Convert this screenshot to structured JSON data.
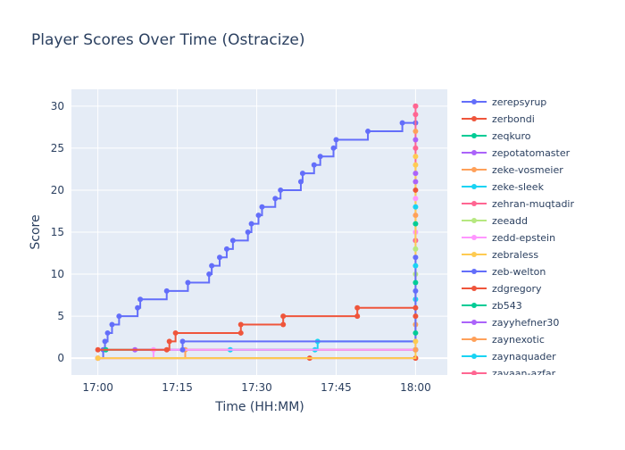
{
  "chart_data": {
    "type": "line",
    "line_shape": "step",
    "title": "Player Scores Over Time (Ostracize)",
    "xlabel": "Time (HH:MM)",
    "ylabel": "Score",
    "x_axis": {
      "range": [
        "16:55",
        "18:06"
      ],
      "tick_labels": [
        "17:00",
        "17:15",
        "17:30",
        "17:45",
        "18:00"
      ]
    },
    "y_axis": {
      "range": [
        -2,
        32
      ],
      "ticks": [
        0,
        5,
        10,
        15,
        20,
        25,
        30
      ]
    },
    "grid": true,
    "legend_position": "right",
    "series": [
      {
        "name": "zerepsyrup",
        "color": "#636efa",
        "points": [
          [
            "17:00",
            0
          ],
          [
            "17:01",
            1
          ],
          [
            "17:01:20",
            2
          ],
          [
            "17:01:50",
            3
          ],
          [
            "17:02:40",
            4
          ],
          [
            "17:04",
            5
          ],
          [
            "17:07:30",
            6
          ],
          [
            "17:08",
            7
          ],
          [
            "17:13",
            8
          ],
          [
            "17:17",
            9
          ],
          [
            "17:21",
            10
          ],
          [
            "17:21:30",
            11
          ],
          [
            "17:23",
            12
          ],
          [
            "17:24:20",
            13
          ],
          [
            "17:25:30",
            14
          ],
          [
            "17:28:20",
            15
          ],
          [
            "17:29",
            16
          ],
          [
            "17:30:20",
            17
          ],
          [
            "17:31",
            18
          ],
          [
            "17:33:30",
            19
          ],
          [
            "17:34:30",
            20
          ],
          [
            "17:38:20",
            21
          ],
          [
            "17:38:40",
            22
          ],
          [
            "17:40:50",
            23
          ],
          [
            "17:42",
            24
          ],
          [
            "17:44:30",
            25
          ],
          [
            "17:45",
            26
          ],
          [
            "17:51",
            27
          ],
          [
            "17:57:30",
            28
          ],
          [
            "18:00",
            28
          ]
        ]
      },
      {
        "name": "zerbondi",
        "color": "#ef553b",
        "points": [
          [
            "17:00",
            0
          ],
          [
            "17:40",
            0
          ],
          [
            "18:00",
            0
          ]
        ]
      },
      {
        "name": "zeqkuro",
        "color": "#00cc96",
        "points": [
          [
            "17:01:30",
            1
          ],
          [
            "18:00",
            1
          ]
        ]
      },
      {
        "name": "zepotatomaster",
        "color": "#ab63fa",
        "points": [
          [
            "17:07",
            1
          ],
          [
            "18:00",
            1
          ]
        ]
      },
      {
        "name": "zeke-vosmeier",
        "color": "#ffa15a",
        "points": [
          [
            "17:00",
            0
          ],
          [
            "17:16:30",
            1
          ],
          [
            "18:00",
            4
          ]
        ]
      },
      {
        "name": "zeke-sleek",
        "color": "#19d3f3",
        "points": [
          [
            "17:25",
            1
          ],
          [
            "17:41",
            1
          ],
          [
            "17:41:30",
            2
          ],
          [
            "18:00",
            7
          ]
        ]
      },
      {
        "name": "zehran-muqtadir",
        "color": "#ff6692",
        "points": [
          [
            "18:00",
            14
          ],
          [
            "18:00",
            30
          ]
        ]
      },
      {
        "name": "zeeadd",
        "color": "#b6e880",
        "points": [
          [
            "18:00",
            10
          ]
        ]
      },
      {
        "name": "zedd-epstein",
        "color": "#ff97ff",
        "points": [
          [
            "17:00",
            0
          ],
          [
            "17:10:30",
            1
          ],
          [
            "18:00",
            15
          ]
        ]
      },
      {
        "name": "zebraless",
        "color": "#fecb52",
        "points": [
          [
            "17:00",
            0
          ],
          [
            "18:00",
            23
          ]
        ]
      },
      {
        "name": "zeb-welton",
        "color": "#636efa",
        "points": [
          [
            "17:16",
            1
          ],
          [
            "17:16",
            2
          ],
          [
            "18:00",
            12
          ]
        ]
      },
      {
        "name": "zdgregory",
        "color": "#ef553b",
        "points": [
          [
            "17:00",
            1
          ],
          [
            "17:13",
            1
          ],
          [
            "17:13:30",
            2
          ],
          [
            "17:14:40",
            3
          ],
          [
            "17:27",
            3
          ],
          [
            "17:27",
            4
          ],
          [
            "17:35",
            4
          ],
          [
            "17:35",
            5
          ],
          [
            "17:49",
            5
          ],
          [
            "17:49",
            6
          ],
          [
            "18:00",
            6
          ]
        ]
      },
      {
        "name": "zb543",
        "color": "#00cc96",
        "points": [
          [
            "18:00",
            3
          ]
        ]
      },
      {
        "name": "zayyhefner30",
        "color": "#ab63fa",
        "points": [
          [
            "18:00",
            22
          ]
        ]
      },
      {
        "name": "zaynexotic",
        "color": "#ffa15a",
        "points": [
          [
            "18:00",
            27
          ]
        ]
      },
      {
        "name": "zaynaquader",
        "color": "#19d3f3",
        "points": [
          [
            "18:00",
            18
          ]
        ]
      },
      {
        "name": "zayaan-azfar",
        "color": "#ff6692",
        "points": [
          [
            "18:00",
            29
          ]
        ]
      }
    ],
    "extra_markers_at_18_00": [
      {
        "y": 1,
        "color": "#ffa15a"
      },
      {
        "y": 2,
        "color": "#fecb52"
      },
      {
        "y": 5,
        "color": "#ef553b"
      },
      {
        "y": 8,
        "color": "#636efa"
      },
      {
        "y": 9,
        "color": "#00cc96"
      },
      {
        "y": 11,
        "color": "#19d3f3"
      },
      {
        "y": 13,
        "color": "#b6e880"
      },
      {
        "y": 16,
        "color": "#00cc96"
      },
      {
        "y": 17,
        "color": "#ffa15a"
      },
      {
        "y": 19,
        "color": "#ff97ff"
      },
      {
        "y": 20,
        "color": "#ef553b"
      },
      {
        "y": 21,
        "color": "#ab63fa"
      },
      {
        "y": 24,
        "color": "#fecb52"
      },
      {
        "y": 25,
        "color": "#ff6692"
      },
      {
        "y": 26,
        "color": "#ab63fa"
      },
      {
        "y": 30,
        "color": "#ff6692"
      }
    ]
  }
}
